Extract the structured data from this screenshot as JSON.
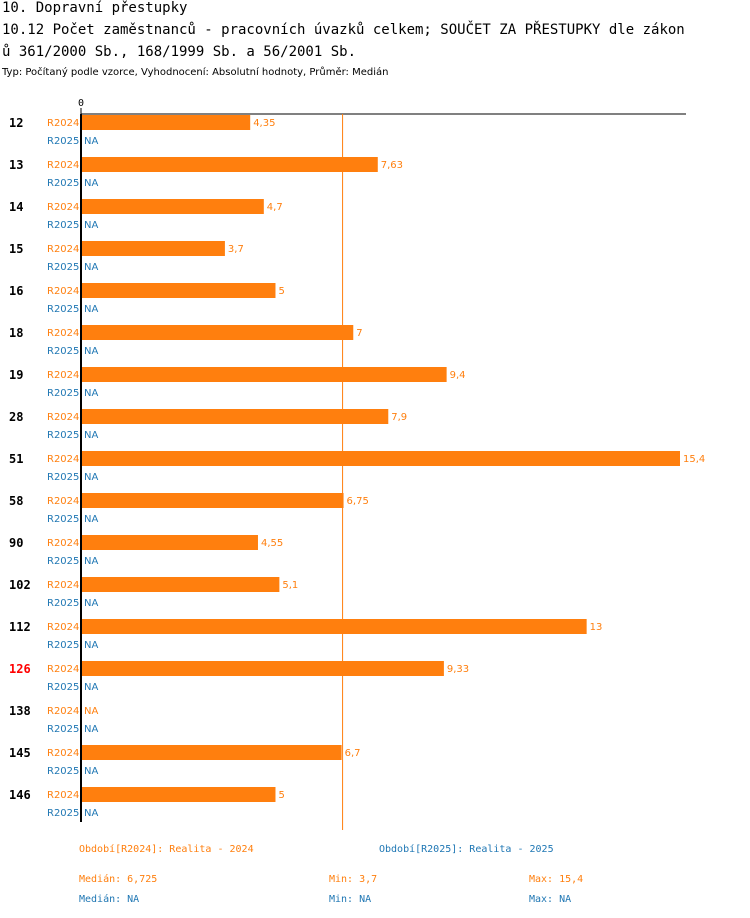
{
  "title_line1": "10. Dopravní přestupky",
  "title_line2": "10.12 Počet zaměstnanců - pracovních úvazků celkem; SOUČET ZA PŘESTUPKY dle zákon",
  "title_line3": "ů 361/2000 Sb., 168/1999 Sb. a 56/2001 Sb.",
  "subtitle": "Typ: Počítaný podle vzorce, Vyhodnocení: Absolutní hodnoty, Průměr: Medián",
  "colors": {
    "r2024": "#ff7f0e",
    "r2025": "#1f77b4",
    "highlight": "#ff0000"
  },
  "chart_data": {
    "type": "bar",
    "orientation": "horizontal",
    "axis_zero_label": "0",
    "xlim": [
      0,
      15.4
    ],
    "median_line": 6.725,
    "categories": [
      "12",
      "13",
      "14",
      "15",
      "16",
      "18",
      "19",
      "28",
      "51",
      "58",
      "90",
      "102",
      "112",
      "126",
      "138",
      "145",
      "146"
    ],
    "highlighted_category": "126",
    "series": [
      {
        "name": "R2024",
        "values": [
          4.35,
          7.63,
          4.7,
          3.7,
          5,
          7,
          9.4,
          7.9,
          15.4,
          6.75,
          4.55,
          5.1,
          13,
          9.33,
          null,
          6.7,
          5
        ],
        "labels": [
          "4,35",
          "7,63",
          "4,7",
          "3,7",
          "5",
          "7",
          "9,4",
          "7,9",
          "15,4",
          "6,75",
          "4,55",
          "5,1",
          "13",
          "9,33",
          "NA",
          "6,7",
          "5"
        ]
      },
      {
        "name": "R2025",
        "values": [
          null,
          null,
          null,
          null,
          null,
          null,
          null,
          null,
          null,
          null,
          null,
          null,
          null,
          null,
          null,
          null,
          null
        ],
        "labels": [
          "NA",
          "NA",
          "NA",
          "NA",
          "NA",
          "NA",
          "NA",
          "NA",
          "NA",
          "NA",
          "NA",
          "NA",
          "NA",
          "NA",
          "NA",
          "NA",
          "NA"
        ]
      }
    ]
  },
  "legend": {
    "r2024": "Období[R2024]: Realita - 2024",
    "r2025": "Období[R2025]: Realita - 2025"
  },
  "stats": {
    "r2024": {
      "median": "Medián: 6,725",
      "min": "Min: 3,7",
      "max": "Max: 15,4"
    },
    "r2025": {
      "median": "Medián: NA",
      "min": "Min: NA",
      "max": "Max: NA"
    }
  }
}
